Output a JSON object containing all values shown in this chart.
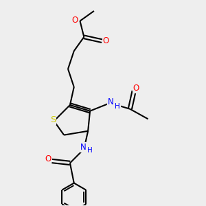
{
  "bg_color": "#eeeeee",
  "bond_color": "#000000",
  "bond_width": 1.5,
  "atom_colors": {
    "S": "#cccc00",
    "O": "#ff0000",
    "N": "#0000ff",
    "C": "#000000"
  },
  "font_size": 8.5
}
